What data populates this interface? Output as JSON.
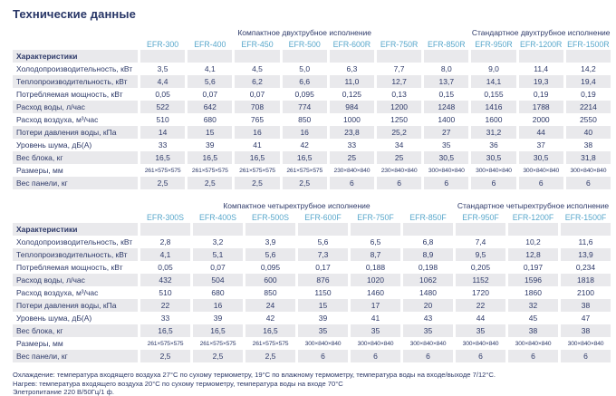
{
  "page": {
    "title": "Технические данные"
  },
  "colors": {
    "text_navy": "#2e3a69",
    "model_header_blue": "#58a7cb",
    "stripe_gray": "#e9e9ec",
    "background": "#ffffff"
  },
  "tables": [
    {
      "name": "two-pipe",
      "groups": [
        {
          "label": "Компактное двухтрубное исполнение",
          "span": 7
        },
        {
          "label": "Стандартное двухтрубное исполнение",
          "span": 3
        }
      ],
      "columns": [
        "EFR-300",
        "EFR-400",
        "EFR-450",
        "EFR-500",
        "EFR-600R",
        "EFR-750R",
        "EFR-850R",
        "EFR-950R",
        "EFR-1200R",
        "EFR-1500R"
      ],
      "header_label": "Характеристики",
      "rows": [
        {
          "label": "Холодопроизводительность, кВт",
          "values": [
            "3,5",
            "4,1",
            "4,5",
            "5,0",
            "6,3",
            "7,7",
            "8,0",
            "9,0",
            "11,4",
            "14,2"
          ]
        },
        {
          "label": "Теплопроизводительность, кВт",
          "values": [
            "4,4",
            "5,6",
            "6,2",
            "6,6",
            "11,0",
            "12,7",
            "13,7",
            "14,1",
            "19,3",
            "19,4"
          ]
        },
        {
          "label": "Потребляемая мощность, кВт",
          "values": [
            "0,05",
            "0,07",
            "0,07",
            "0,095",
            "0,125",
            "0,13",
            "0,15",
            "0,155",
            "0,19",
            "0,19"
          ]
        },
        {
          "label": "Расход воды, л/час",
          "values": [
            "522",
            "642",
            "708",
            "774",
            "984",
            "1200",
            "1248",
            "1416",
            "1788",
            "2214"
          ]
        },
        {
          "label": "Расход воздуха, м³/час",
          "values": [
            "510",
            "680",
            "765",
            "850",
            "1000",
            "1250",
            "1400",
            "1600",
            "2000",
            "2550"
          ]
        },
        {
          "label": "Потери давления воды, кПа",
          "values": [
            "14",
            "15",
            "16",
            "16",
            "23,8",
            "25,2",
            "27",
            "31,2",
            "44",
            "40"
          ]
        },
        {
          "label": "Уровень шума, дБ(А)",
          "values": [
            "33",
            "39",
            "41",
            "42",
            "33",
            "34",
            "35",
            "36",
            "37",
            "38"
          ]
        },
        {
          "label": "Вес блока, кг",
          "values": [
            "16,5",
            "16,5",
            "16,5",
            "16,5",
            "25",
            "25",
            "30,5",
            "30,5",
            "30,5",
            "31,8"
          ]
        },
        {
          "label": "Размеры, мм",
          "values": [
            "261×575×575",
            "261×575×575",
            "261×575×575",
            "261×575×575",
            "230×840×840",
            "230×840×840",
            "300×840×840",
            "300×840×840",
            "300×840×840",
            "300×840×840"
          ]
        },
        {
          "label": "Вес панели, кг",
          "values": [
            "2,5",
            "2,5",
            "2,5",
            "2,5",
            "6",
            "6",
            "6",
            "6",
            "6",
            "6"
          ]
        }
      ]
    },
    {
      "name": "four-pipe",
      "groups": [
        {
          "label": "Компактное четырехтрубное исполнение",
          "span": 6
        },
        {
          "label": "Стандартное четырехтрубное исполнение",
          "span": 3
        }
      ],
      "columns": [
        "EFR-300S",
        "EFR-400S",
        "EFR-500S",
        "EFR-600F",
        "EFR-750F",
        "EFR-850F",
        "EFR-950F",
        "EFR-1200F",
        "EFR-1500F"
      ],
      "header_label": "Характеристики",
      "rows": [
        {
          "label": "Холодопроизводительность, кВт",
          "values": [
            "2,8",
            "3,2",
            "3,9",
            "5,6",
            "6,5",
            "6,8",
            "7,4",
            "10,2",
            "11,6"
          ]
        },
        {
          "label": "Теплопроизводительность, кВт",
          "values": [
            "4,1",
            "5,1",
            "5,6",
            "7,3",
            "8,7",
            "8,9",
            "9,5",
            "12,8",
            "13,9"
          ]
        },
        {
          "label": "Потребляемая мощность, кВт",
          "values": [
            "0,05",
            "0,07",
            "0,095",
            "0,17",
            "0,188",
            "0,198",
            "0,205",
            "0,197",
            "0,234"
          ]
        },
        {
          "label": "Расход воды, л/час",
          "values": [
            "432",
            "504",
            "600",
            "876",
            "1020",
            "1062",
            "1152",
            "1596",
            "1818"
          ]
        },
        {
          "label": "Расход воздуха, м³/час",
          "values": [
            "510",
            "680",
            "850",
            "1150",
            "1460",
            "1480",
            "1720",
            "1860",
            "2100"
          ]
        },
        {
          "label": "Потери давления воды, кПа",
          "values": [
            "22",
            "16",
            "24",
            "15",
            "17",
            "20",
            "22",
            "32",
            "38"
          ]
        },
        {
          "label": "Уровень шума, дБ(А)",
          "values": [
            "33",
            "39",
            "42",
            "39",
            "41",
            "43",
            "44",
            "45",
            "47"
          ]
        },
        {
          "label": "Вес блока, кг",
          "values": [
            "16,5",
            "16,5",
            "16,5",
            "35",
            "35",
            "35",
            "35",
            "38",
            "38"
          ]
        },
        {
          "label": "Размеры, мм",
          "values": [
            "261×575×575",
            "261×575×575",
            "261×575×575",
            "300×840×840",
            "300×840×840",
            "300×840×840",
            "300×840×840",
            "300×840×840",
            "300×840×840"
          ]
        },
        {
          "label": "Вес панели, кг",
          "values": [
            "2,5",
            "2,5",
            "2,5",
            "6",
            "6",
            "6",
            "6",
            "6",
            "6"
          ]
        }
      ]
    }
  ],
  "footnotes": [
    "Охлаждение: температура входящего воздуха 27°С по сухому термометру, 19°С по влажному термометру, температура воды на входе/выходе 7/12°С.",
    "Нагрев: температура входящего воздуха 20°С по сухому термометру, температура воды на входе 70°С",
    "Элетропитание 220 В/50Гц/1 ф."
  ]
}
